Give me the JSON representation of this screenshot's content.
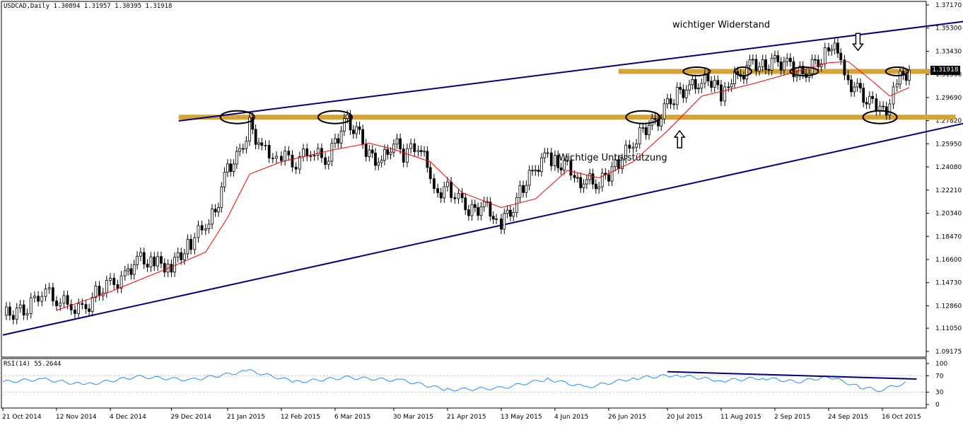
{
  "header": {
    "symbol": "USDCAD,Daily",
    "ohlc": "1.30894 1.31957 1.30395 1.31918",
    "rsi_label": "RSI(14) 55.2644"
  },
  "price_badge": "1.31918",
  "annotations": {
    "resistance": "wichtiger Widerstand",
    "support": "Wichtige Unterstützung"
  },
  "colors": {
    "candle": "#000000",
    "moving_average": "#ff0000",
    "trend_channel": "#000080",
    "level_band": "#d4a33a",
    "rsi_line": "#1e90ff",
    "rsi_trendline": "#000080"
  },
  "chart_data": [
    {
      "type": "line",
      "title": "USDCAD,Daily",
      "x_axis": {
        "type": "date",
        "range": [
          "2014-10-21",
          "2015-10-27"
        ],
        "tick_labels": [
          "21 Oct 2014",
          "12 Nov 2014",
          "4 Dec 2014",
          "29 Dec 2014",
          "21 Jan 2015",
          "12 Feb 2015",
          "6 Mar 2015",
          "30 Mar 2015",
          "21 Apr 2015",
          "13 May 2015",
          "4 Jun 2015",
          "26 Jun 2015",
          "20 Jul 2015",
          "11 Aug 2015",
          "2 Sep 2015",
          "24 Sep 2015",
          "16 Oct 2015"
        ],
        "tick_dates": [
          "2014-10-21",
          "2014-11-12",
          "2014-12-04",
          "2014-12-29",
          "2015-01-21",
          "2015-02-12",
          "2015-03-06",
          "2015-03-30",
          "2015-04-21",
          "2015-05-13",
          "2015-06-04",
          "2015-06-26",
          "2015-07-20",
          "2015-08-11",
          "2015-09-02",
          "2015-09-24",
          "2015-10-16"
        ]
      },
      "y_axis": {
        "range": [
          1.0917,
          1.3717
        ],
        "tick_labels": [
          "1.37170",
          "1.35300",
          "1.33430",
          "1.31560",
          "1.29690",
          "1.27820",
          "1.25950",
          "1.24080",
          "1.22210",
          "1.20340",
          "1.18470",
          "1.16600",
          "1.14730",
          "1.12860",
          "1.11050",
          "1.09175"
        ],
        "ticks": [
          1.3717,
          1.353,
          1.3343,
          1.3156,
          1.2969,
          1.2782,
          1.2595,
          1.2408,
          1.2221,
          1.2034,
          1.1847,
          1.166,
          1.1473,
          1.1286,
          1.1105,
          1.09175
        ]
      },
      "grid": false,
      "series": [
        {
          "style": "candlestick",
          "points": [
            {
              "date": "2014-10-21",
              "close": 1.121
            },
            {
              "date": "2014-10-31",
              "close": 1.126
            },
            {
              "date": "2014-11-06",
              "close": 1.142
            },
            {
              "date": "2014-11-12",
              "close": 1.134
            },
            {
              "date": "2014-11-18",
              "close": 1.128
            },
            {
              "date": "2014-11-24",
              "close": 1.125
            },
            {
              "date": "2014-11-28",
              "close": 1.14
            },
            {
              "date": "2014-12-04",
              "close": 1.145
            },
            {
              "date": "2014-12-10",
              "close": 1.152
            },
            {
              "date": "2014-12-15",
              "close": 1.167
            },
            {
              "date": "2014-12-22",
              "close": 1.163
            },
            {
              "date": "2014-12-29",
              "close": 1.161
            },
            {
              "date": "2015-01-06",
              "close": 1.18
            },
            {
              "date": "2015-01-12",
              "close": 1.195
            },
            {
              "date": "2015-01-16",
              "close": 1.205
            },
            {
              "date": "2015-01-21",
              "close": 1.24
            },
            {
              "date": "2015-01-26",
              "close": 1.25
            },
            {
              "date": "2015-01-30",
              "close": 1.275
            },
            {
              "date": "2015-02-04",
              "close": 1.255
            },
            {
              "date": "2015-02-10",
              "close": 1.25
            },
            {
              "date": "2015-02-12",
              "close": 1.25
            },
            {
              "date": "2015-02-18",
              "close": 1.245
            },
            {
              "date": "2015-02-24",
              "close": 1.255
            },
            {
              "date": "2015-03-02",
              "close": 1.245
            },
            {
              "date": "2015-03-06",
              "close": 1.262
            },
            {
              "date": "2015-03-11",
              "close": 1.278
            },
            {
              "date": "2015-03-16",
              "close": 1.265
            },
            {
              "date": "2015-03-20",
              "close": 1.25
            },
            {
              "date": "2015-03-25",
              "close": 1.245
            },
            {
              "date": "2015-03-30",
              "close": 1.262
            },
            {
              "date": "2015-04-03",
              "close": 1.25
            },
            {
              "date": "2015-04-09",
              "close": 1.26
            },
            {
              "date": "2015-04-14",
              "close": 1.235
            },
            {
              "date": "2015-04-17",
              "close": 1.22
            },
            {
              "date": "2015-04-21",
              "close": 1.225
            },
            {
              "date": "2015-04-27",
              "close": 1.21
            },
            {
              "date": "2015-05-01",
              "close": 1.205
            },
            {
              "date": "2015-05-06",
              "close": 1.21
            },
            {
              "date": "2015-05-11",
              "close": 1.2
            },
            {
              "date": "2015-05-13",
              "close": 1.195
            },
            {
              "date": "2015-05-18",
              "close": 1.21
            },
            {
              "date": "2015-05-22",
              "close": 1.225
            },
            {
              "date": "2015-05-27",
              "close": 1.24
            },
            {
              "date": "2015-06-01",
              "close": 1.25
            },
            {
              "date": "2015-06-04",
              "close": 1.245
            },
            {
              "date": "2015-06-09",
              "close": 1.24
            },
            {
              "date": "2015-06-12",
              "close": 1.228
            },
            {
              "date": "2015-06-17",
              "close": 1.23
            },
            {
              "date": "2015-06-22",
              "close": 1.228
            },
            {
              "date": "2015-06-26",
              "close": 1.235
            },
            {
              "date": "2015-06-30",
              "close": 1.245
            },
            {
              "date": "2015-07-06",
              "close": 1.26
            },
            {
              "date": "2015-07-10",
              "close": 1.272
            },
            {
              "date": "2015-07-15",
              "close": 1.275
            },
            {
              "date": "2015-07-20",
              "close": 1.29
            },
            {
              "date": "2015-07-24",
              "close": 1.3
            },
            {
              "date": "2015-07-29",
              "close": 1.305
            },
            {
              "date": "2015-08-03",
              "close": 1.31
            },
            {
              "date": "2015-08-07",
              "close": 1.31
            },
            {
              "date": "2015-08-11",
              "close": 1.3
            },
            {
              "date": "2015-08-14",
              "close": 1.31
            },
            {
              "date": "2015-08-19",
              "close": 1.315
            },
            {
              "date": "2015-08-24",
              "close": 1.325
            },
            {
              "date": "2015-08-28",
              "close": 1.322
            },
            {
              "date": "2015-09-02",
              "close": 1.325
            },
            {
              "date": "2015-09-07",
              "close": 1.325
            },
            {
              "date": "2015-09-11",
              "close": 1.315
            },
            {
              "date": "2015-09-16",
              "close": 1.32
            },
            {
              "date": "2015-09-21",
              "close": 1.33
            },
            {
              "date": "2015-09-24",
              "close": 1.34
            },
            {
              "date": "2015-09-29",
              "close": 1.33
            },
            {
              "date": "2015-10-02",
              "close": 1.31
            },
            {
              "date": "2015-10-07",
              "close": 1.3
            },
            {
              "date": "2015-10-12",
              "close": 1.29
            },
            {
              "date": "2015-10-15",
              "close": 1.285
            },
            {
              "date": "2015-10-19",
              "close": 1.29
            },
            {
              "date": "2015-10-22",
              "close": 1.31
            },
            {
              "date": "2015-10-27",
              "close": 1.319
            }
          ]
        },
        {
          "style": "moving-average",
          "points": [
            {
              "date": "2014-11-12",
              "close": 1.125
            },
            {
              "date": "2014-12-04",
              "close": 1.14
            },
            {
              "date": "2014-12-29",
              "close": 1.16
            },
            {
              "date": "2015-01-12",
              "close": 1.172
            },
            {
              "date": "2015-01-21",
              "close": 1.2
            },
            {
              "date": "2015-01-30",
              "close": 1.235
            },
            {
              "date": "2015-02-12",
              "close": 1.245
            },
            {
              "date": "2015-03-06",
              "close": 1.255
            },
            {
              "date": "2015-03-20",
              "close": 1.26
            },
            {
              "date": "2015-03-30",
              "close": 1.255
            },
            {
              "date": "2015-04-14",
              "close": 1.245
            },
            {
              "date": "2015-04-27",
              "close": 1.22
            },
            {
              "date": "2015-05-13",
              "close": 1.208
            },
            {
              "date": "2015-05-27",
              "close": 1.215
            },
            {
              "date": "2015-06-09",
              "close": 1.238
            },
            {
              "date": "2015-06-22",
              "close": 1.232
            },
            {
              "date": "2015-07-06",
              "close": 1.245
            },
            {
              "date": "2015-07-20",
              "close": 1.27
            },
            {
              "date": "2015-08-03",
              "close": 1.298
            },
            {
              "date": "2015-08-24",
              "close": 1.308
            },
            {
              "date": "2015-09-11",
              "close": 1.318
            },
            {
              "date": "2015-09-24",
              "close": 1.325
            },
            {
              "date": "2015-10-02",
              "close": 1.326
            },
            {
              "date": "2015-10-12",
              "close": 1.31
            },
            {
              "date": "2015-10-19",
              "close": 1.298
            },
            {
              "date": "2015-10-27",
              "close": 1.305
            }
          ]
        }
      ],
      "drawings": {
        "channel_upper": {
          "start": {
            "date": "2015-01-01",
            "price": 1.278
          },
          "end": {
            "date": "2015-12-31",
            "price": 1.369
          }
        },
        "channel_lower": {
          "start": {
            "date": "2014-10-21",
            "price": 1.105
          },
          "end": {
            "date": "2016-01-08",
            "price": 1.298
          }
        },
        "support_level": {
          "price": 1.281,
          "from": "2015-01-01",
          "to": "2015-11-15"
        },
        "resistance_level": {
          "price": 1.318,
          "from": "2015-06-30",
          "to": "2015-11-08"
        },
        "circled_support": [
          "2015-01-25",
          "2015-03-06",
          "2015-07-10",
          "2015-10-15"
        ],
        "circled_resistance": [
          "2015-08-01",
          "2015-08-20",
          "2015-09-14",
          "2015-10-22"
        ],
        "arrow_up": {
          "date": "2015-07-25",
          "price": 1.27
        },
        "arrow_down": {
          "date": "2015-10-06",
          "price": 1.335
        }
      }
    },
    {
      "type": "line",
      "title": "RSI(14) 55.2644",
      "y_axis": {
        "range": [
          0,
          100
        ],
        "tick_labels": [
          "100",
          "70",
          "30",
          "0"
        ],
        "ticks": [
          100,
          70,
          30,
          0
        ]
      },
      "series": [
        {
          "style": "line",
          "points": [
            {
              "date": "2014-10-21",
              "value": 55
            },
            {
              "date": "2014-11-06",
              "value": 62
            },
            {
              "date": "2014-11-24",
              "value": 48
            },
            {
              "date": "2014-12-15",
              "value": 68
            },
            {
              "date": "2015-01-06",
              "value": 60
            },
            {
              "date": "2015-01-30",
              "value": 82
            },
            {
              "date": "2015-02-18",
              "value": 55
            },
            {
              "date": "2015-03-11",
              "value": 66
            },
            {
              "date": "2015-04-03",
              "value": 58
            },
            {
              "date": "2015-04-21",
              "value": 36
            },
            {
              "date": "2015-05-13",
              "value": 40
            },
            {
              "date": "2015-06-01",
              "value": 62
            },
            {
              "date": "2015-06-17",
              "value": 42
            },
            {
              "date": "2015-07-06",
              "value": 64
            },
            {
              "date": "2015-07-24",
              "value": 72
            },
            {
              "date": "2015-08-11",
              "value": 58
            },
            {
              "date": "2015-08-28",
              "value": 65
            },
            {
              "date": "2015-09-11",
              "value": 55
            },
            {
              "date": "2015-09-24",
              "value": 68
            },
            {
              "date": "2015-10-07",
              "value": 42
            },
            {
              "date": "2015-10-15",
              "value": 35
            },
            {
              "date": "2015-10-27",
              "value": 55
            }
          ]
        }
      ],
      "drawings": {
        "trendline": {
          "start": {
            "date": "2015-07-20",
            "value": 80
          },
          "end": {
            "date": "2015-10-30",
            "value": 62
          }
        }
      }
    }
  ]
}
